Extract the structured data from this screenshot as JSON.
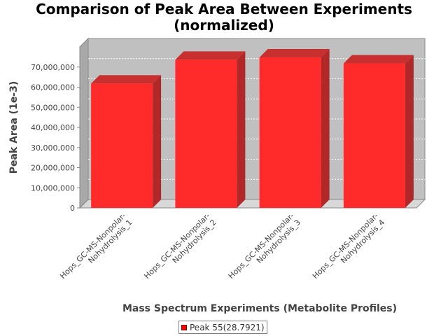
{
  "chart_data": {
    "type": "bar",
    "title_line1": "Comparison of Peak Area Between Experiments",
    "title_line2": "(normalized)",
    "xlabel": "Mass Spectrum Experiments (Metabolite Profiles)",
    "ylabel": "Peak Area (1e-3)",
    "categories": [
      "Hops_GC-MS-Nonpolar-Nohydrolysis_1",
      "Hops_GC-MS-Nonpolar-Nohydrolysis_2",
      "Hops_GC-MS-Nonpolar-Nohydrolysis_3",
      "Hops_GC-MS-Nonpolar-Nohydrolysis_4"
    ],
    "category_label_lines": [
      [
        "Hops_GC-MS-Nonpolar-",
        "Nohydrolysis_1"
      ],
      [
        "Hops_GC-MS-Nonpolar-",
        "Nohydrolysis_2"
      ],
      [
        "Hops_GC-MS-Nonpolar-",
        "Nohydrolysis_3"
      ],
      [
        "Hops_GC-MS-Nonpolar-",
        "Nohydrolysis_4"
      ]
    ],
    "series": [
      {
        "name": "Peak 55(28.7921)",
        "values": [
          61800000,
          73600000,
          74800000,
          71800000
        ]
      }
    ],
    "yticks": [
      0,
      10000000,
      20000000,
      30000000,
      40000000,
      50000000,
      60000000,
      70000000
    ],
    "ytick_labels": [
      "0",
      "10,000,000",
      "20,000,000",
      "30,000,000",
      "40,000,000",
      "50,000,000",
      "60,000,000",
      "70,000,000"
    ],
    "ylim": [
      0,
      80000000
    ],
    "grid": true,
    "legend_position": "bottom-center",
    "colors": {
      "bar_front": "#ff2a2a",
      "bar_top": "#c83030",
      "bar_side": "#b02828",
      "plot_back": "#c0c0c0",
      "plot_floor": "#d8d8d8",
      "legend_swatch": "#ff0000"
    }
  }
}
